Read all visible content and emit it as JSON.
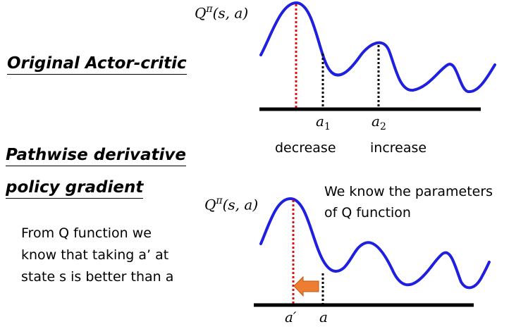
{
  "headings": {
    "actor_critic": "Original Actor-critic",
    "pathwise_line1": "Pathwise derivative",
    "pathwise_line2": "policy gradient"
  },
  "top_diagram": {
    "q_label_base": "Q",
    "q_label_sup": "π",
    "q_label_args": "(s, a)",
    "a1_base": "a",
    "a1_sub": "1",
    "a2_base": "a",
    "a2_sub": "2",
    "a1_caption": "decrease",
    "a2_caption": "increase"
  },
  "bottom_diagram": {
    "q_label_base": "Q",
    "q_label_sup": "π",
    "q_label_args": "(s, a)",
    "a_prime_label": "a′",
    "a_label": "a",
    "note_line1": "We know the parameters",
    "note_line2": "of Q function"
  },
  "explanation": {
    "line1": "From Q function we",
    "line2": "know that taking a’ at",
    "line3": "state s is better than a"
  },
  "colors": {
    "curve": "#1f1fe0",
    "max_marker": "#e01010",
    "action_marker": "#000000",
    "arrow": "#ed7d31"
  }
}
